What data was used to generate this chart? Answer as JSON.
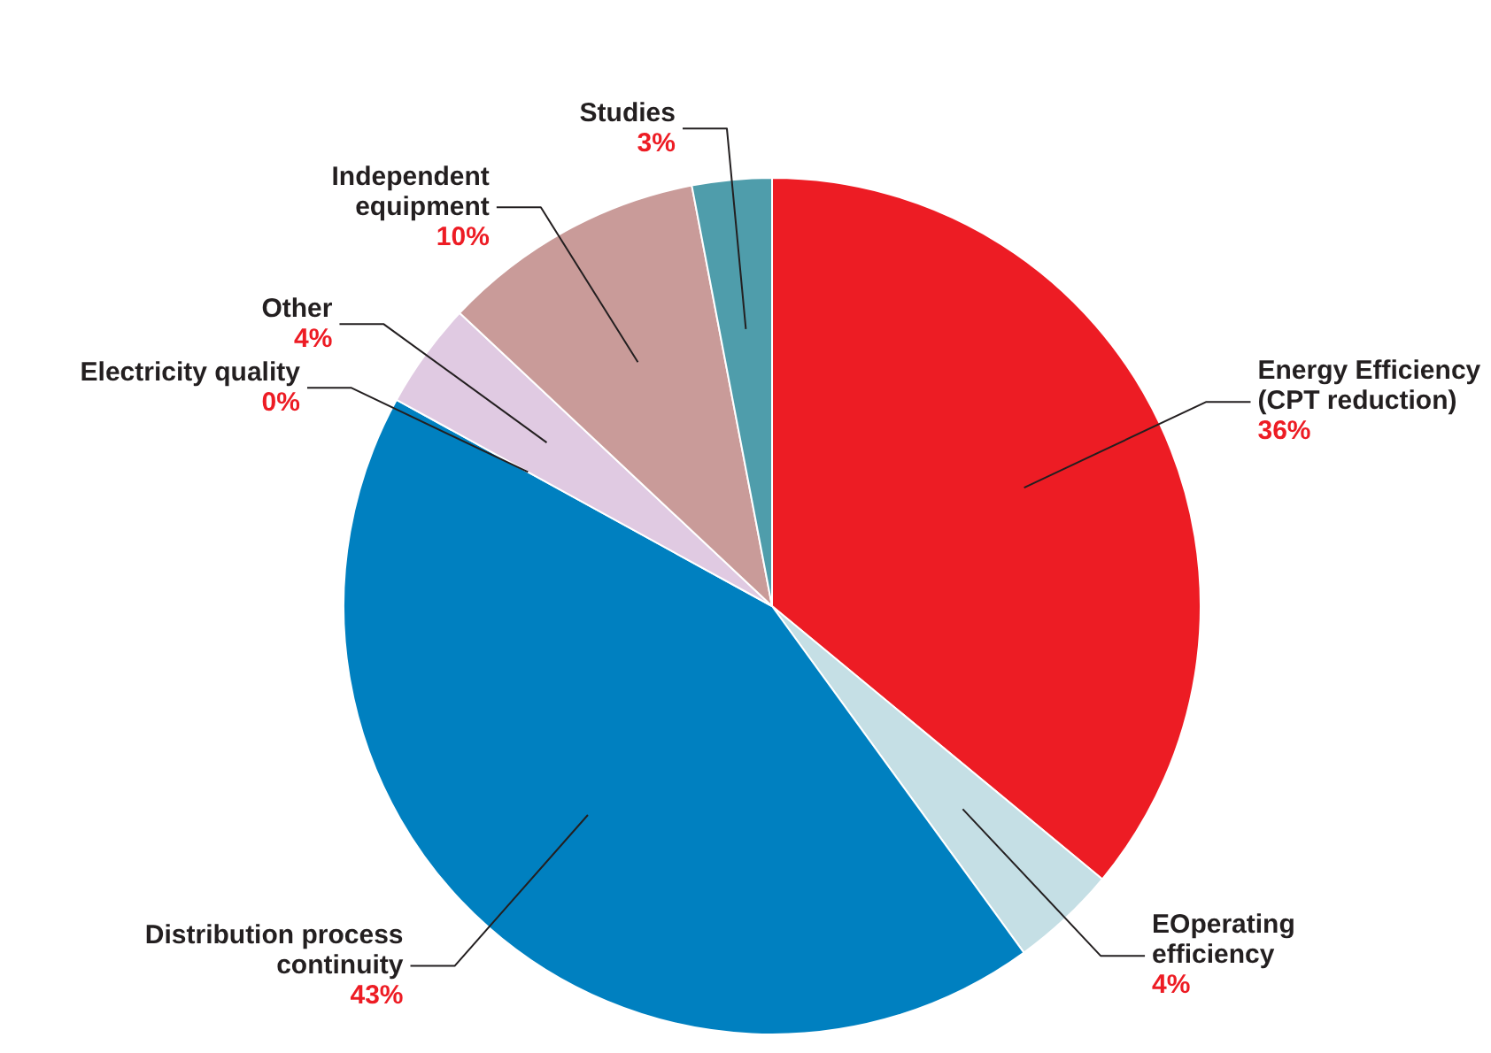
{
  "chart_data": {
    "type": "pie",
    "categories": [
      "Energy Efficiency (CPT reduction)",
      "EOperating efficiency",
      "Distribution process continuity",
      "Electricity quality",
      "Other",
      "Independent equipment",
      "Studies"
    ],
    "values": [
      36,
      4,
      43,
      0,
      4,
      10,
      3
    ],
    "value_labels": [
      "36%",
      "4%",
      "43%",
      "0%",
      "4%",
      "10%",
      "3%"
    ],
    "colors": [
      "#ed1c24",
      "#c5dfe5",
      "#0080c0",
      "#9ab8d0",
      "#e0cae2",
      "#c99b99",
      "#4f9dab"
    ],
    "legend": false
  }
}
